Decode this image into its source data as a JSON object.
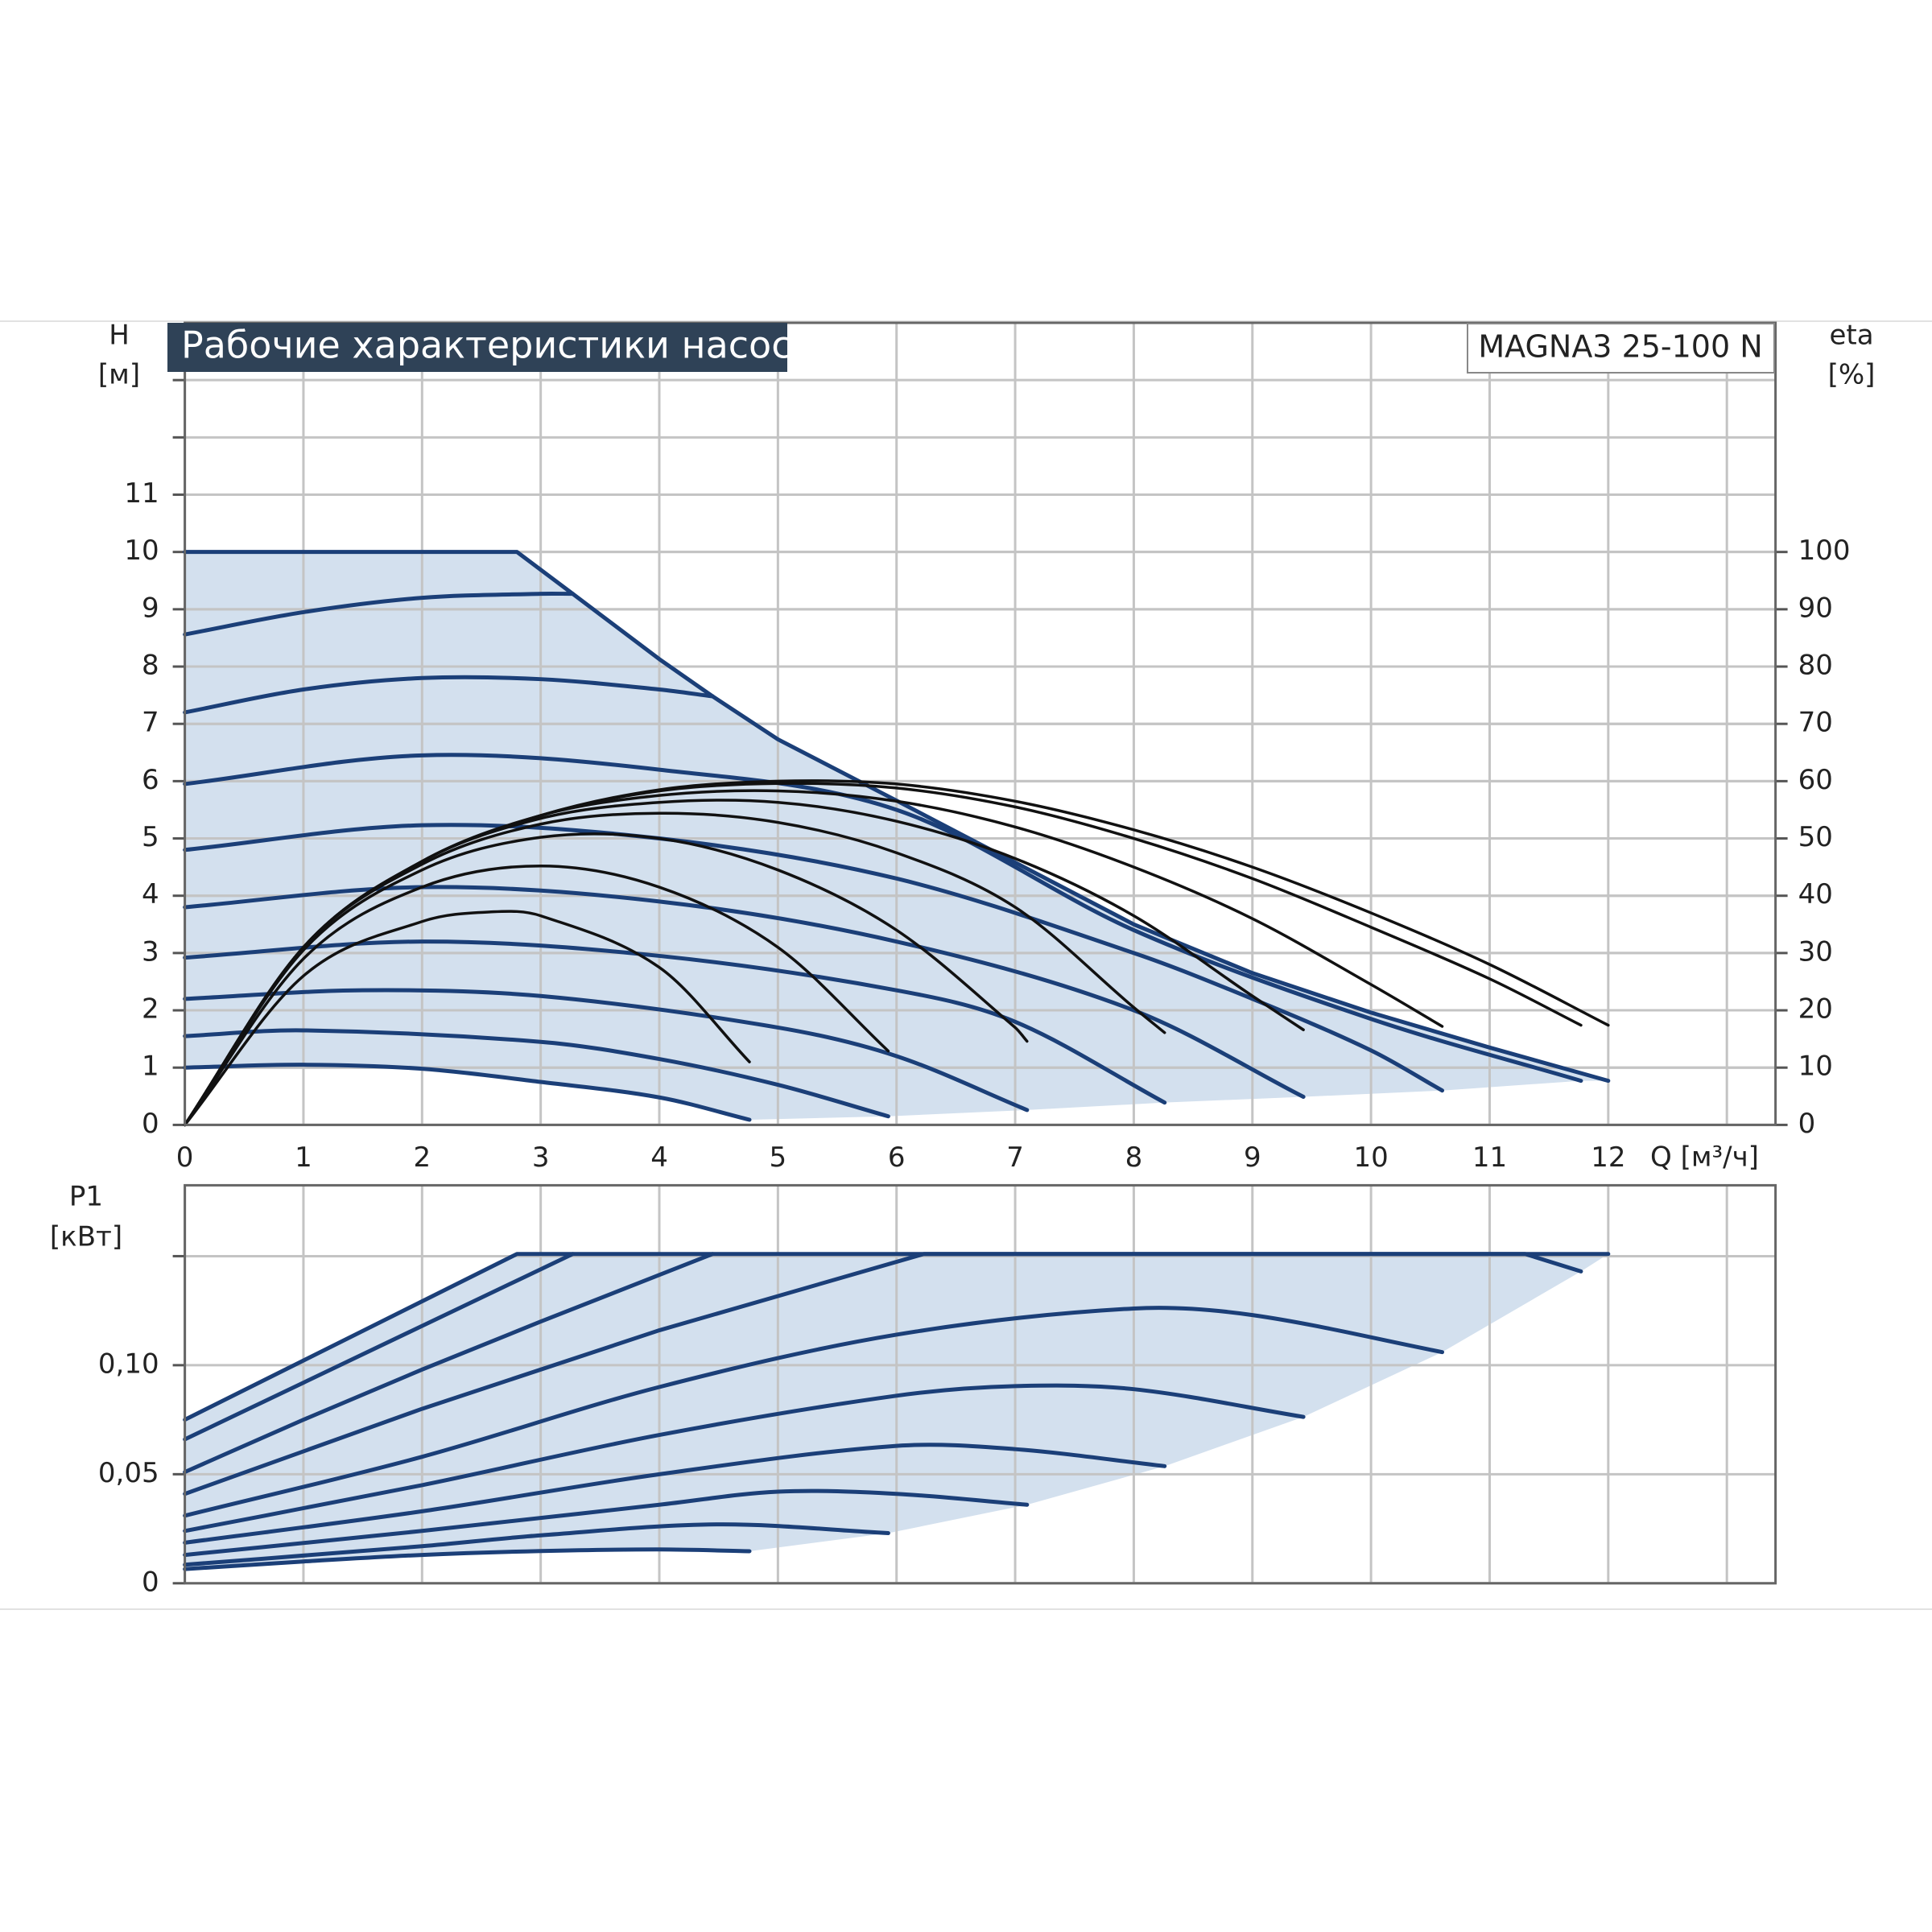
{
  "chart_data": [
    {
      "type": "line",
      "title": "Рабочие характеристики насоса",
      "annotation": "MAGNA3 25-100 N",
      "y_label": "H",
      "y_unit": "[м]",
      "y2_label": "eta",
      "y2_unit": "[%]",
      "x_label": "Q [м³/ч]",
      "xlim": [
        0,
        13.41
      ],
      "xticks": [
        0,
        1,
        2,
        3,
        4,
        5,
        6,
        7,
        8,
        9,
        10,
        11,
        12
      ],
      "minor_xticks": [
        13
      ],
      "ylim": [
        0,
        14
      ],
      "yticks": [
        0,
        1,
        2,
        3,
        4,
        5,
        6,
        7,
        8,
        9,
        10,
        11
      ],
      "minor_yticks": [
        12,
        13
      ],
      "y2lim": [
        0,
        140
      ],
      "y2ticks": [
        0,
        10,
        20,
        30,
        40,
        50,
        60,
        70,
        80,
        90,
        100
      ],
      "grid": true,
      "fill_color": "#d3e0ee",
      "series": [
        {
          "color": "#1b3f78",
          "smooth": false,
          "x": [
            0,
            2.8,
            3.27,
            4,
            4.45,
            5,
            6,
            7,
            8,
            9,
            10,
            11,
            12
          ],
          "values": [
            10,
            10,
            9.27,
            8.13,
            7.48,
            6.73,
            5.66,
            4.58,
            3.5,
            2.65,
            1.96,
            1.35,
            0.77
          ]
        },
        {
          "color": "#1b3f78",
          "x": [
            0,
            1,
            2,
            3,
            3.27
          ],
          "values": [
            8.56,
            8.95,
            9.2,
            9.27,
            9.27
          ]
        },
        {
          "color": "#1b3f78",
          "x": [
            0,
            1,
            2,
            3,
            4,
            4.45
          ],
          "values": [
            7.2,
            7.6,
            7.8,
            7.78,
            7.6,
            7.48
          ]
        },
        {
          "color": "#1b3f78",
          "x": [
            0,
            2,
            4,
            6,
            8,
            10,
            11.77
          ],
          "values": [
            5.95,
            6.45,
            6.2,
            5.5,
            3.4,
            1.85,
            0.77
          ]
        },
        {
          "color": "#1b3f78",
          "x": [
            0,
            2,
            4,
            6,
            8,
            9,
            10,
            10.6
          ],
          "values": [
            4.8,
            5.23,
            5.0,
            4.3,
            3.0,
            2.2,
            1.3,
            0.6
          ]
        },
        {
          "color": "#1b3f78",
          "x": [
            0,
            2,
            4,
            6,
            8,
            9.43
          ],
          "values": [
            3.8,
            4.15,
            3.9,
            3.2,
            2.0,
            0.49
          ]
        },
        {
          "color": "#1b3f78",
          "x": [
            0,
            2,
            4,
            6,
            7,
            8.26
          ],
          "values": [
            2.92,
            3.2,
            2.95,
            2.35,
            1.8,
            0.39
          ]
        },
        {
          "color": "#1b3f78",
          "x": [
            0,
            1.5,
            3,
            5,
            6,
            7.1
          ],
          "values": [
            2.2,
            2.35,
            2.25,
            1.7,
            1.2,
            0.26
          ]
        },
        {
          "color": "#1b3f78",
          "x": [
            0,
            1,
            3,
            4,
            5,
            5.93
          ],
          "values": [
            1.55,
            1.65,
            1.45,
            1.15,
            0.7,
            0.15
          ]
        },
        {
          "color": "#1b3f78",
          "x": [
            0,
            1,
            2,
            3,
            4,
            4.76
          ],
          "values": [
            1.0,
            1.05,
            0.98,
            0.75,
            0.48,
            0.09
          ]
        },
        {
          "color": "#111111",
          "axis": "y2",
          "x": [
            0,
            1,
            2,
            3,
            4,
            5,
            6,
            7,
            8,
            9,
            10,
            11,
            12
          ],
          "values": [
            0,
            31,
            46,
            54,
            58.5,
            60,
            59.5,
            56.5,
            51.5,
            45,
            37,
            28,
            17.4
          ]
        },
        {
          "color": "#111111",
          "axis": "y2",
          "x": [
            0,
            1,
            2,
            3,
            4,
            5,
            6,
            7,
            8,
            9,
            10,
            11,
            11.77
          ],
          "values": [
            0,
            31,
            46,
            54,
            58.3,
            59.6,
            58.8,
            55.5,
            50,
            43,
            34.5,
            25.5,
            17.4
          ]
        },
        {
          "color": "#111111",
          "axis": "y2",
          "x": [
            0,
            1,
            2,
            3,
            4,
            5,
            6,
            7,
            8,
            9,
            10,
            10.6
          ],
          "values": [
            0,
            31,
            46,
            54,
            57.5,
            58.3,
            56.5,
            52,
            45,
            36,
            24.5,
            17.2
          ]
        },
        {
          "color": "#111111",
          "axis": "y2",
          "x": [
            0,
            1,
            2,
            3,
            4,
            5,
            6,
            7,
            8,
            9,
            9.43
          ],
          "values": [
            0,
            31,
            46,
            53.5,
            56.3,
            56.3,
            53,
            46.5,
            36.5,
            22.5,
            16.6
          ]
        },
        {
          "color": "#111111",
          "axis": "y2",
          "x": [
            0,
            1,
            2,
            3,
            4,
            5,
            6,
            7,
            8,
            8.26
          ],
          "values": [
            0,
            31,
            45.5,
            52.5,
            54.4,
            52.8,
            47.5,
            38,
            20.5,
            16.1
          ]
        },
        {
          "color": "#111111",
          "axis": "y2",
          "x": [
            0,
            1,
            2,
            3,
            4,
            5,
            6,
            7,
            7.1
          ],
          "values": [
            0,
            30.5,
            44.5,
            50.2,
            50,
            44.5,
            34,
            17,
            14.6
          ]
        },
        {
          "color": "#111111",
          "axis": "y2",
          "x": [
            0,
            1,
            2,
            3,
            4,
            5,
            5.93
          ],
          "values": [
            0,
            29,
            41.5,
            45.2,
            41.5,
            31,
            12.9
          ]
        },
        {
          "color": "#111111",
          "axis": "y2",
          "x": [
            0,
            1,
            2,
            2.6,
            3,
            4,
            4.76
          ],
          "values": [
            0,
            26,
            35.5,
            37.2,
            36.5,
            27.5,
            11
          ]
        }
      ]
    },
    {
      "type": "line",
      "y_label": "P1",
      "y_unit": "[кВт]",
      "xlim": [
        0,
        13.41
      ],
      "minor_xticks": [
        0,
        1,
        2,
        3,
        4,
        5,
        6,
        7,
        8,
        9,
        10,
        11,
        12,
        13
      ],
      "ylim": [
        0,
        0.1825
      ],
      "yticks": [
        0,
        {
          "value": 0.05,
          "label": "0,05"
        },
        {
          "value": 0.1,
          "label": "0,10"
        }
      ],
      "minor_yticks": [
        0.15
      ],
      "grid": true,
      "fill_color": "#d3e0ee",
      "series": [
        {
          "color": "#1b3f78",
          "smooth": false,
          "x": [
            0,
            2.8,
            3.27,
            4.45,
            6.23,
            11.3,
            12
          ],
          "values": [
            0.075,
            0.151,
            0.151,
            0.151,
            0.151,
            0.151,
            0.151
          ]
        },
        {
          "color": "#1b3f78",
          "x": [
            0,
            1,
            2,
            3.27
          ],
          "values": [
            0.066,
            0.092,
            0.118,
            0.151
          ]
        },
        {
          "color": "#1b3f78",
          "x": [
            0,
            1,
            2,
            3,
            4.45
          ],
          "values": [
            0.051,
            0.075,
            0.098,
            0.12,
            0.151
          ]
        },
        {
          "color": "#1b3f78",
          "smooth": false,
          "x": [
            0,
            2,
            4,
            6.23,
            11.3,
            11.77
          ],
          "values": [
            0.041,
            0.08,
            0.116,
            0.151,
            0.151,
            0.143
          ]
        },
        {
          "color": "#1b3f78",
          "x": [
            0,
            2,
            4,
            6,
            8,
            9,
            10.6
          ],
          "values": [
            0.031,
            0.058,
            0.09,
            0.114,
            0.126,
            0.123,
            0.106
          ]
        },
        {
          "color": "#1b3f78",
          "x": [
            0,
            2,
            4,
            6,
            7,
            8,
            9.43
          ],
          "values": [
            0.024,
            0.045,
            0.068,
            0.086,
            0.0904,
            0.089,
            0.0763
          ]
        },
        {
          "color": "#1b3f78",
          "x": [
            0,
            2,
            4,
            6,
            7,
            8.26
          ],
          "values": [
            0.0186,
            0.033,
            0.05,
            0.063,
            0.0615,
            0.0537
          ]
        },
        {
          "color": "#1b3f78",
          "x": [
            0,
            2,
            4,
            5,
            6,
            7.1
          ],
          "values": [
            0.013,
            0.024,
            0.036,
            0.042,
            0.041,
            0.036
          ]
        },
        {
          "color": "#1b3f78",
          "x": [
            0,
            2,
            3,
            4.5,
            5.93
          ],
          "values": [
            0.0085,
            0.017,
            0.022,
            0.027,
            0.023
          ]
        },
        {
          "color": "#1b3f78",
          "x": [
            0,
            1,
            2,
            3,
            4,
            4.76
          ],
          "values": [
            0.0065,
            0.01,
            0.013,
            0.0148,
            0.0155,
            0.0147
          ]
        }
      ]
    }
  ]
}
